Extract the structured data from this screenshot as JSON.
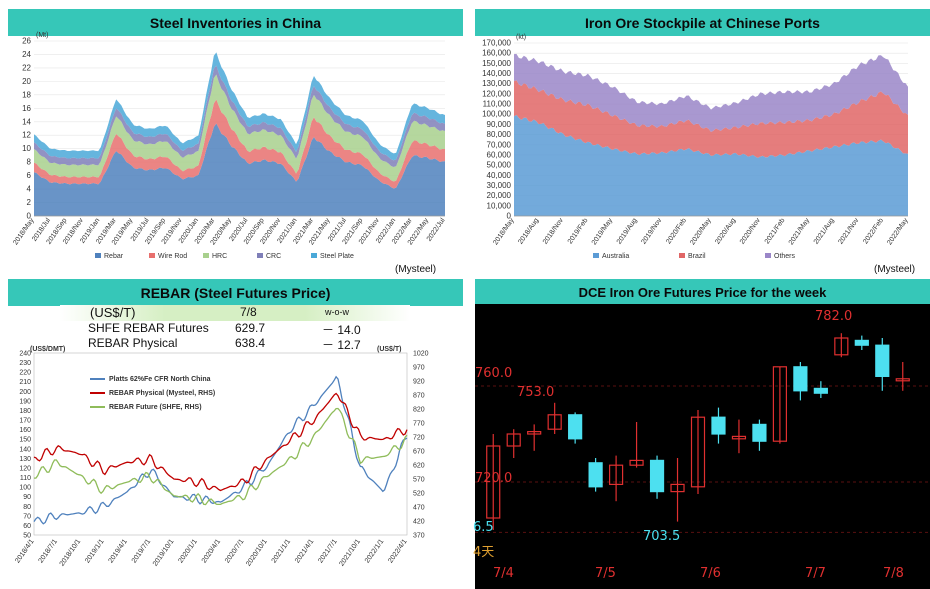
{
  "panels": {
    "steel": {
      "title": "Steel Inventories in China",
      "source": "(Mysteel)"
    },
    "iron": {
      "title": "Iron Ore Stockpile at Chinese Ports",
      "source": "(Mysteel)"
    },
    "rebar": {
      "title": "REBAR (Steel Futures Price)",
      "table": {
        "header": [
          "(US$/T)",
          "7/8",
          "w-o-w"
        ],
        "rows": [
          [
            "SHFE REBAR Futures",
            "629.7",
            "－ 14.0"
          ],
          [
            "REBAR Physical",
            "638.4",
            "－ 12.7"
          ]
        ]
      }
    },
    "dce": {
      "title": "DCE Iron Ore Futures Price for the week"
    }
  },
  "chart_data": [
    {
      "id": "steel",
      "type": "area",
      "title": "Steel Inventories in China",
      "y_unit": "(Mt)",
      "ylim": [
        0,
        26
      ],
      "yticks": [
        0,
        2,
        4,
        6,
        8,
        10,
        12,
        14,
        16,
        18,
        20,
        22,
        24,
        26
      ],
      "x_labels": [
        "2018/May",
        "2018/Jul",
        "2018/Sep",
        "2018/Nov",
        "2019/Jan",
        "2019/Mar",
        "2019/May",
        "2019/Jul",
        "2019/Sep",
        "2019/Nov",
        "2020/Jan",
        "2020/Mar",
        "2020/May",
        "2020/Jul",
        "2020/Sep",
        "2020/Nov",
        "2021/Jan",
        "2021/Mar",
        "2021/May",
        "2021/Jul",
        "2021/Sep",
        "2021/Nov",
        "2022/Jan",
        "2022/Mar",
        "2022/May",
        "2022/Jul"
      ],
      "legend": [
        "Rebar",
        "Wire Rod",
        "HRC",
        "CRC",
        "Steel Plate"
      ],
      "colors": {
        "Rebar": "#4f81bd",
        "Wire Rod": "#e8706e",
        "HRC": "#a8d08d",
        "CRC": "#7f7fb8",
        "Steel Plate": "#4aa8d8"
      },
      "x": [
        0,
        1,
        2,
        3,
        4,
        5,
        6,
        7,
        8,
        9,
        10,
        11,
        12,
        13,
        14,
        15,
        16,
        17,
        18,
        19,
        20,
        21,
        22,
        23,
        24,
        25
      ],
      "series": [
        {
          "name": "Rebar",
          "values": [
            6.5,
            5.0,
            4.8,
            4.8,
            4.8,
            9.8,
            7.2,
            6.8,
            7.2,
            5.5,
            6.0,
            13.8,
            10.5,
            7.8,
            8.3,
            7.8,
            5.0,
            11.8,
            9.5,
            8.0,
            7.5,
            5.2,
            4.0,
            9.0,
            8.6,
            8.0
          ]
        },
        {
          "name": "Wire Rod",
          "values": [
            1.4,
            1.1,
            1.0,
            1.0,
            1.0,
            2.6,
            1.8,
            1.6,
            1.7,
            1.2,
            1.4,
            3.6,
            2.6,
            1.8,
            1.9,
            1.7,
            1.2,
            3.0,
            2.3,
            1.8,
            1.7,
            1.2,
            1.0,
            2.2,
            2.0,
            1.8
          ]
        },
        {
          "name": "HRC",
          "values": [
            2.0,
            1.8,
            1.8,
            1.8,
            1.8,
            2.6,
            2.3,
            2.2,
            2.3,
            2.0,
            2.2,
            3.8,
            3.0,
            2.6,
            2.6,
            2.5,
            2.2,
            3.4,
            3.0,
            2.7,
            2.6,
            2.2,
            2.1,
            2.9,
            2.8,
            2.7
          ]
        },
        {
          "name": "CRC",
          "values": [
            1.0,
            1.0,
            1.0,
            1.0,
            1.0,
            1.2,
            1.1,
            1.1,
            1.1,
            1.0,
            1.1,
            1.4,
            1.2,
            1.1,
            1.1,
            1.1,
            1.0,
            1.3,
            1.2,
            1.1,
            1.1,
            1.0,
            1.0,
            1.2,
            1.2,
            1.1
          ]
        },
        {
          "name": "Steel Plate",
          "values": [
            1.2,
            1.1,
            1.1,
            1.1,
            1.1,
            1.3,
            1.2,
            1.2,
            1.2,
            1.1,
            1.2,
            2.0,
            1.6,
            1.3,
            1.3,
            1.3,
            1.1,
            1.5,
            1.4,
            1.3,
            1.3,
            1.1,
            1.0,
            1.4,
            1.4,
            1.3
          ]
        }
      ]
    },
    {
      "id": "iron",
      "type": "area",
      "title": "Iron Ore Stockpile at Chinese Ports",
      "y_unit": "(kt)",
      "ylim": [
        0,
        170000
      ],
      "yticks": [
        0,
        10000,
        20000,
        30000,
        40000,
        50000,
        60000,
        70000,
        80000,
        90000,
        100000,
        110000,
        120000,
        130000,
        140000,
        150000,
        160000,
        170000
      ],
      "ytick_labels": [
        "0",
        "10,000",
        "20,000",
        "30,000",
        "40,000",
        "50,000",
        "60,000",
        "70,000",
        "80,000",
        "90,000",
        "100,000",
        "110,000",
        "120,000",
        "130,000",
        "140,000",
        "150,000",
        "160,000",
        "170,000"
      ],
      "x_labels": [
        "2018/May",
        "2018/Aug",
        "2018/Nov",
        "2019/Feb",
        "2019/May",
        "2019/Aug",
        "2019/Nov",
        "2020/Feb",
        "2020/May",
        "2020/Aug",
        "2020/Nov",
        "2021/Feb",
        "2021/May",
        "2021/Aug",
        "2021/Nov",
        "2022/Feb",
        "2022/May"
      ],
      "legend": [
        "Australia",
        "Brazil",
        "Others"
      ],
      "colors": {
        "Australia": "#5b9bd5",
        "Brazil": "#e06666",
        "Others": "#9a86c8"
      },
      "x": [
        0,
        1,
        2,
        3,
        4,
        5,
        6,
        7,
        8,
        9,
        10,
        11,
        12,
        13,
        14,
        15,
        16
      ],
      "series": [
        {
          "name": "Australia",
          "values": [
            98000,
            92000,
            80000,
            72000,
            66000,
            61000,
            62000,
            66000,
            60000,
            61000,
            58000,
            60000,
            64000,
            68000,
            72000,
            74000,
            60000
          ]
        },
        {
          "name": "Brazil",
          "values": [
            34000,
            32000,
            34000,
            37000,
            33000,
            28000,
            26000,
            28000,
            24000,
            26000,
            33000,
            32000,
            30000,
            32000,
            40000,
            48000,
            38000
          ]
        },
        {
          "name": "Others",
          "values": [
            26000,
            28000,
            28000,
            29000,
            28000,
            23000,
            22000,
            24000,
            22000,
            24000,
            29000,
            30000,
            28000,
            30000,
            36000,
            36000,
            28000
          ]
        }
      ]
    },
    {
      "id": "rebar",
      "type": "line",
      "left_axis": "(US$/DMT)",
      "right_axis": "(US$/T)",
      "ylim": [
        50,
        240
      ],
      "yticks": [
        50,
        60,
        70,
        80,
        90,
        100,
        110,
        120,
        130,
        140,
        150,
        160,
        170,
        180,
        190,
        200,
        210,
        220,
        230,
        240
      ],
      "y2lim": [
        370,
        1020
      ],
      "y2ticks": [
        370,
        420,
        470,
        520,
        570,
        620,
        670,
        720,
        770,
        820,
        870,
        920,
        970,
        1020
      ],
      "x_labels": [
        "2018/4/1",
        "2018/7/1",
        "2018/10/1",
        "2019/1/1",
        "2019/4/1",
        "2019/7/1",
        "2019/10/1",
        "2020/1/1",
        "2020/4/1",
        "2020/7/1",
        "2020/10/1",
        "2021/1/1",
        "2021/4/1",
        "2021/7/1",
        "2021/10/1",
        "2022/1/1",
        "2022/4/1"
      ],
      "x": [
        0,
        1,
        2,
        3,
        4,
        5,
        6,
        7,
        8,
        9,
        10,
        11,
        12,
        13,
        14,
        15,
        16
      ],
      "series": [
        {
          "name": "Platts 62%Fe CFR North China",
          "axis": "left",
          "color": "#4f81bd",
          "values": [
            64,
            70,
            73,
            80,
            95,
            118,
            90,
            88,
            84,
            100,
            122,
            160,
            185,
            215,
            120,
            95,
            155
          ]
        },
        {
          "name": "REBAR Physical (Mysteel, RHS)",
          "axis": "right",
          "color": "#c00000",
          "values": [
            640,
            680,
            660,
            600,
            630,
            640,
            570,
            560,
            530,
            560,
            640,
            710,
            780,
            880,
            720,
            710,
            750
          ]
        },
        {
          "name": "REBAR Future (SHFE, RHS)",
          "axis": "right",
          "color": "#8fbc5a",
          "values": [
            580,
            630,
            580,
            530,
            560,
            580,
            510,
            500,
            480,
            510,
            580,
            640,
            720,
            830,
            640,
            650,
            710
          ]
        }
      ]
    },
    {
      "id": "dce",
      "type": "candlestick",
      "title": "DCE Iron Ore Futures Price for the week",
      "price_labels": [
        "782.0",
        "760.0",
        "753.0",
        "720.0",
        "703.5",
        "6.5"
      ],
      "extra_label": "4天",
      "x_labels": [
        "7/4",
        "7/5",
        "7/6",
        "7/7",
        "7/8"
      ],
      "ylim": [
        690,
        790
      ],
      "candles": [
        {
          "open": 705,
          "close": 735,
          "high": 740,
          "low": 700
        },
        {
          "open": 735,
          "close": 740,
          "high": 742,
          "low": 730
        },
        {
          "open": 740,
          "close": 741,
          "high": 744,
          "low": 733
        },
        {
          "open": 742,
          "close": 748,
          "high": 753,
          "low": 740
        },
        {
          "open": 748,
          "close": 738,
          "high": 749,
          "low": 736
        },
        {
          "open": 728,
          "close": 718,
          "high": 730,
          "low": 716
        },
        {
          "open": 719,
          "close": 727,
          "high": 731,
          "low": 712
        },
        {
          "open": 727,
          "close": 729,
          "high": 745,
          "low": 726
        },
        {
          "open": 729,
          "close": 716,
          "high": 731,
          "low": 713
        },
        {
          "open": 716,
          "close": 719,
          "high": 730,
          "low": 703.5
        },
        {
          "open": 718,
          "close": 747,
          "high": 750,
          "low": 715
        },
        {
          "open": 747,
          "close": 740,
          "high": 751,
          "low": 736
        },
        {
          "open": 738,
          "close": 739,
          "high": 746,
          "low": 732
        },
        {
          "open": 744,
          "close": 737,
          "high": 746,
          "low": 733
        },
        {
          "open": 737,
          "close": 768,
          "high": 768,
          "low": 736
        },
        {
          "open": 768,
          "close": 758,
          "high": 770,
          "low": 754
        },
        {
          "open": 759,
          "close": 757,
          "high": 762,
          "low": 755
        },
        {
          "open": 773,
          "close": 780,
          "high": 782,
          "low": 772
        },
        {
          "open": 779,
          "close": 777,
          "high": 781,
          "low": 775
        },
        {
          "open": 777,
          "close": 764,
          "high": 780,
          "low": 758
        },
        {
          "open": 763,
          "close": 763,
          "high": 770,
          "low": 758
        }
      ]
    }
  ]
}
